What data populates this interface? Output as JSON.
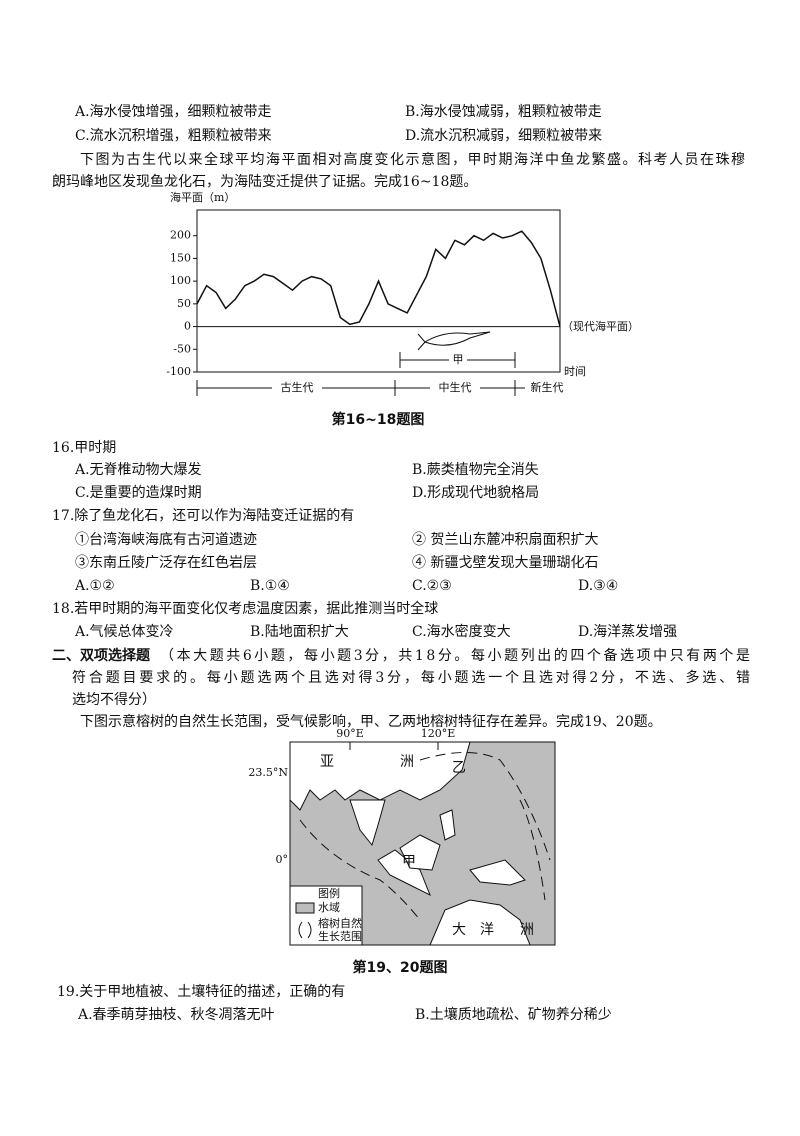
{
  "prev_options": [
    "A.海水侵蚀增强，细颗粒被带走",
    "B.海水侵蚀减弱，粗颗粒被带走",
    "C.流水沉积增强，粗颗粒被带来",
    "D.流水沉积减弱，细颗粒被带来"
  ],
  "intro_16_18": [
    "下图为古生代以来全球平均海平面相对高度变化示意图，甲时期海洋中鱼龙繁盛。科考人员在珠穆",
    "朗玛峰地区发现鱼龙化石，为海陆变迁提供了证据。完成16~18题。"
  ],
  "figure_16_18": {
    "type": "line",
    "y_label": "海平面（m）",
    "ylim": [
      -100,
      250
    ],
    "yticks": [
      200,
      150,
      100,
      50,
      0,
      -50,
      -100
    ],
    "values": [
      50,
      90,
      75,
      40,
      60,
      90,
      100,
      115,
      110,
      95,
      80,
      100,
      110,
      105,
      90,
      20,
      5,
      10,
      50,
      100,
      50,
      40,
      30,
      70,
      110,
      170,
      150,
      190,
      180,
      200,
      190,
      205,
      195,
      200,
      210,
      185,
      150,
      80,
      0
    ],
    "modern_label": "（现代海平面）",
    "time_label": "时间",
    "period_label": "甲",
    "eras": [
      "古生代",
      "中生代",
      "新生代"
    ],
    "caption": "第16~18题图"
  },
  "q16": {
    "stem": "16.甲时期",
    "options": [
      "A.无脊椎动物大爆发",
      "B.蕨类植物完全消失",
      "C.是重要的造煤时期",
      "D.形成现代地貌格局"
    ]
  },
  "q17": {
    "stem": "17.除了鱼龙化石，还可以作为海陆变迁证据的有",
    "items": [
      "①台湾海峡海底有古河道遗迹",
      "② 贺兰山东麓冲积扇面积扩大",
      "③东南丘陵广泛存在红色岩层",
      "④ 新疆戈壁发现大量珊瑚化石"
    ],
    "options": [
      "A.①②",
      "B.①④",
      "C.②③",
      "D.③④"
    ]
  },
  "q18": {
    "stem": "18.若甲时期的海平面变化仅考虑温度因素，据此推测当时全球",
    "options": [
      "A.气候总体变冷",
      "B.陆地面积扩大",
      "C.海水密度变大",
      "D.海洋蒸发增强"
    ]
  },
  "section2": {
    "heading": "二、双项选择题",
    "lines": [
      "（本大题共6小题，每小题3分，共18分。每小题列出的四个备选项中只有两个是",
      "符合题目要求的。每小题选两个且选对得3分，每小题选一个且选对得2分，不选、多选、错",
      "选均不得分）"
    ]
  },
  "intro_19_20": "下图示意榕树的自然生长范围，受气候影响，甲、乙两地榕树特征存在差异。完成19、20题。",
  "map": {
    "lon_labels": [
      "90°E",
      "120°E"
    ],
    "lat_labels": [
      "23.5°N",
      "0°"
    ],
    "asia": [
      "亚",
      "洲"
    ],
    "oceania": [
      "大",
      "洋",
      "洲"
    ],
    "place_a": "甲",
    "place_b": "乙",
    "legend_title": "图例",
    "legend_water": "水域",
    "legend_range": [
      "榕树自然",
      "生长范围"
    ],
    "caption": "第19、20题图"
  },
  "q19": {
    "stem": "19.关于甲地植被、土壤特征的描述，正确的有",
    "options": [
      "A.春季萌芽抽枝、秋冬凋落无叶",
      "B.土壤质地疏松、矿物养分稀少"
    ]
  }
}
